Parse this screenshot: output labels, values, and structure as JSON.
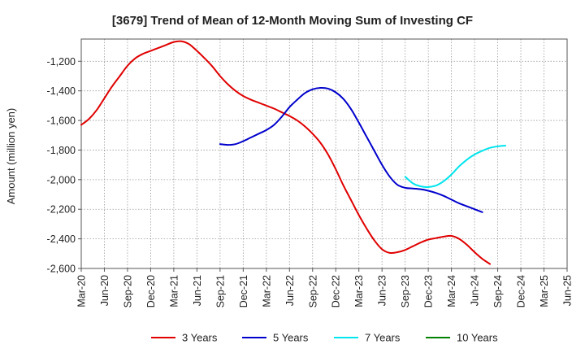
{
  "chart_data": {
    "type": "line",
    "title": "[3679]  Trend of Mean of 12-Month Moving Sum of Investing CF",
    "xlabel": "",
    "ylabel": "Amount (million yen)",
    "ylim": [
      -2600,
      -1050
    ],
    "yticks": [
      -1200,
      -1400,
      -1600,
      -1800,
      -2000,
      -2200,
      -2400,
      -2600
    ],
    "ytick_labels": [
      "-1,200",
      "-1,400",
      "-1,600",
      "-1,800",
      "-2,000",
      "-2,200",
      "-2,400",
      "-2,600"
    ],
    "x_labels": [
      "Mar-20",
      "Jun-20",
      "Sep-20",
      "Dec-20",
      "Mar-21",
      "Jun-21",
      "Sep-21",
      "Dec-21",
      "Mar-22",
      "Jun-22",
      "Sep-22",
      "Dec-22",
      "Mar-23",
      "Jun-23",
      "Sep-23",
      "Dec-23",
      "Mar-24",
      "Jun-24",
      "Sep-24",
      "Dec-24",
      "Mar-25",
      "Jun-25"
    ],
    "x_count_months": 63,
    "grid": true,
    "legend_position": "bottom",
    "series": [
      {
        "name": "3 Years",
        "color": "#e00000",
        "start_month": 0,
        "values": [
          -1630,
          -1590,
          -1530,
          -1450,
          -1370,
          -1300,
          -1230,
          -1180,
          -1150,
          -1130,
          -1110,
          -1090,
          -1070,
          -1065,
          -1085,
          -1130,
          -1180,
          -1235,
          -1300,
          -1355,
          -1400,
          -1435,
          -1460,
          -1480,
          -1500,
          -1520,
          -1545,
          -1570,
          -1600,
          -1640,
          -1690,
          -1750,
          -1830,
          -1930,
          -2040,
          -2140,
          -2240,
          -2330,
          -2410,
          -2470,
          -2495,
          -2490,
          -2475,
          -2450,
          -2425,
          -2405,
          -2395,
          -2385,
          -2380,
          -2400,
          -2440,
          -2490,
          -2535,
          -2570
        ]
      },
      {
        "name": "5 Years",
        "color": "#0000cc",
        "start_month": 18,
        "values": [
          -1760,
          -1765,
          -1760,
          -1740,
          -1715,
          -1690,
          -1665,
          -1630,
          -1575,
          -1510,
          -1460,
          -1415,
          -1390,
          -1380,
          -1385,
          -1410,
          -1455,
          -1525,
          -1615,
          -1710,
          -1805,
          -1900,
          -1980,
          -2035,
          -2055,
          -2060,
          -2065,
          -2075,
          -2090,
          -2110,
          -2135,
          -2160,
          -2180,
          -2200,
          -2220
        ]
      },
      {
        "name": "7 Years",
        "color": "#00e5ee",
        "start_month": 42,
        "values": [
          -1980,
          -2025,
          -2045,
          -2050,
          -2040,
          -2010,
          -1965,
          -1910,
          -1865,
          -1830,
          -1805,
          -1785,
          -1775,
          -1770
        ]
      },
      {
        "name": "10 Years",
        "color": "#008000",
        "start_month": null,
        "values": []
      }
    ]
  }
}
